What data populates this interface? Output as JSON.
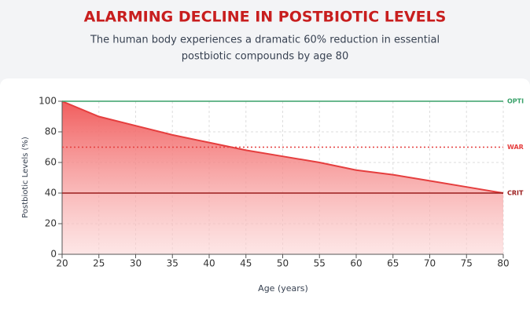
{
  "chart_data": {
    "type": "area",
    "title": "ALARMING DECLINE IN POSTBIOTIC LEVELS",
    "subtitle": [
      "The human body experiences a dramatic 60% reduction in essential",
      "postbiotic compounds by age 80"
    ],
    "x_label": "Age (years)",
    "y_label": "Postbiotic Levels (%)",
    "x": [
      20,
      25,
      30,
      35,
      40,
      45,
      50,
      55,
      60,
      65,
      70,
      75,
      80
    ],
    "series": [
      {
        "color": "#e53e3e",
        "values": [
          100,
          90,
          84,
          78,
          73,
          68,
          64,
          60,
          55,
          52,
          48,
          44,
          40
        ]
      }
    ],
    "xlim": [
      20,
      80
    ],
    "xticks": [
      20,
      25,
      30,
      35,
      40,
      45,
      50,
      55,
      60,
      65,
      70,
      75,
      80
    ],
    "ylim": [
      0,
      100
    ],
    "yticks": [
      0,
      20,
      40,
      60,
      80,
      100
    ],
    "grid": true,
    "reference_lines": [
      {
        "value": 100,
        "label": "OPTI",
        "color": "#38a169",
        "style": "solid"
      },
      {
        "value": 70,
        "label": "WAR",
        "color": "#e53e3e",
        "style": "dotted"
      },
      {
        "value": 40,
        "label": "CRIT",
        "color": "#9b1c1c",
        "style": "solid"
      }
    ]
  }
}
